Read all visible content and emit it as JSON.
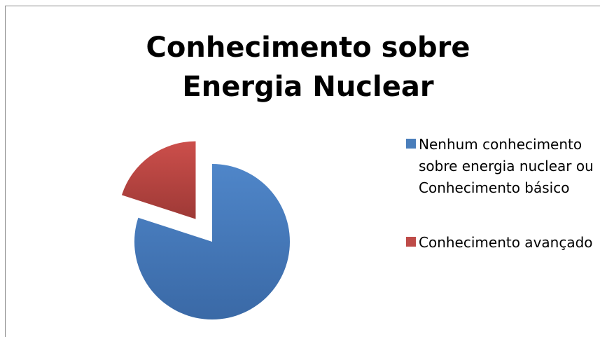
{
  "chart_data": {
    "type": "pie",
    "title": "Conhecimento sobre Energia Nuclear",
    "categories": [
      "Nenhum conhecimento sobre energia nuclear ou Conhecimento básico",
      "Conhecimento avançado"
    ],
    "values": [
      80,
      20
    ],
    "colors": [
      "#4a7ebb",
      "#be4b48"
    ],
    "exploded": [
      false,
      true
    ],
    "legend": "right"
  }
}
